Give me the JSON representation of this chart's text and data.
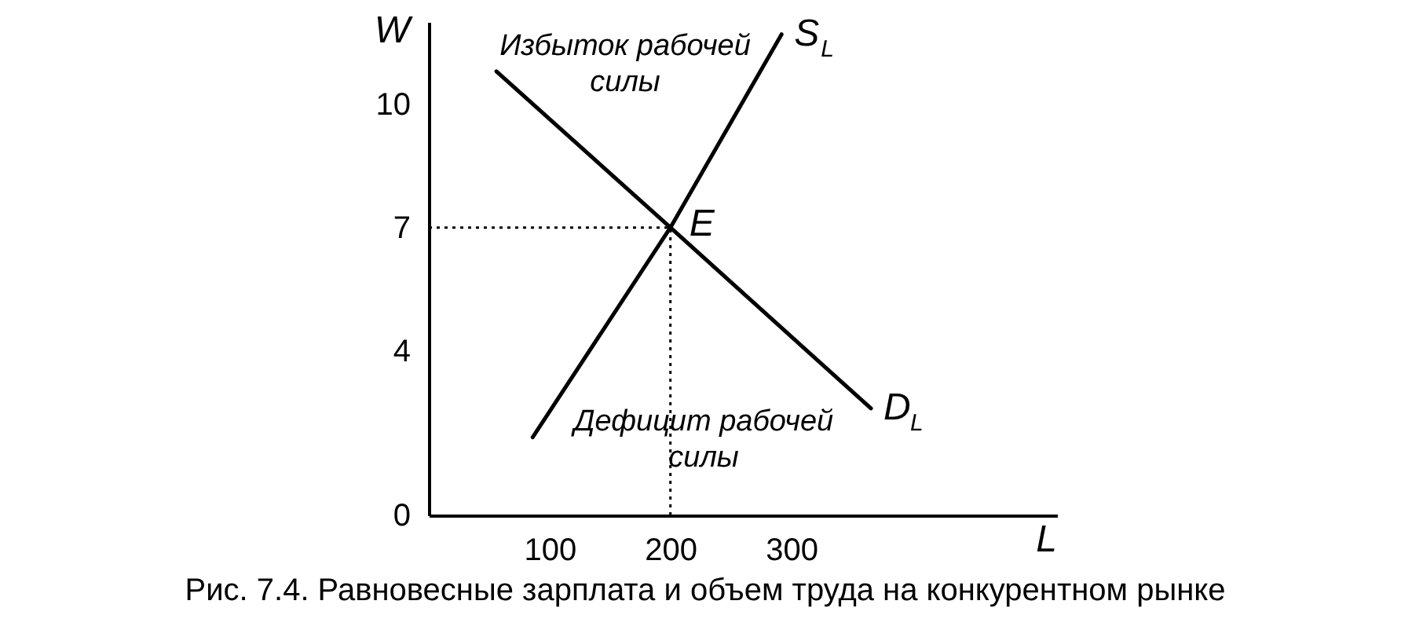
{
  "chart_data": {
    "type": "line",
    "title": "Рис. 7.4. Равновесные зарплата и объем труда на конкурентном рынке",
    "xlabel": "L",
    "ylabel": "W",
    "series": [
      {
        "name": "S$_{L}$",
        "color": "#000000",
        "x": [
          86,
          200,
          292
        ],
        "values": [
          1.9,
          7,
          11.7
        ]
      },
      {
        "name": "D$_{L}$",
        "color": "#000000",
        "x": [
          56,
          200,
          366
        ],
        "values": [
          10.8,
          7,
          2.6
        ]
      }
    ],
    "xlim": [
      0,
      520
    ],
    "ylim": [
      0,
      12
    ],
    "xticks": [
      100,
      200,
      300
    ],
    "yticks": [
      0,
      4,
      7,
      10
    ],
    "ref_lines": [
      {
        "axis": "y",
        "value": 7,
        "line_style": "dotted"
      },
      {
        "axis": "x",
        "value": 200,
        "line_style": "dotted"
      }
    ],
    "annotations": [
      "Избыток рабочей силы",
      "Дефицит рабочей силы",
      {
        "text": "E",
        "x": 200,
        "y": 7
      }
    ],
    "marker": "none",
    "line_style": "solid"
  }
}
